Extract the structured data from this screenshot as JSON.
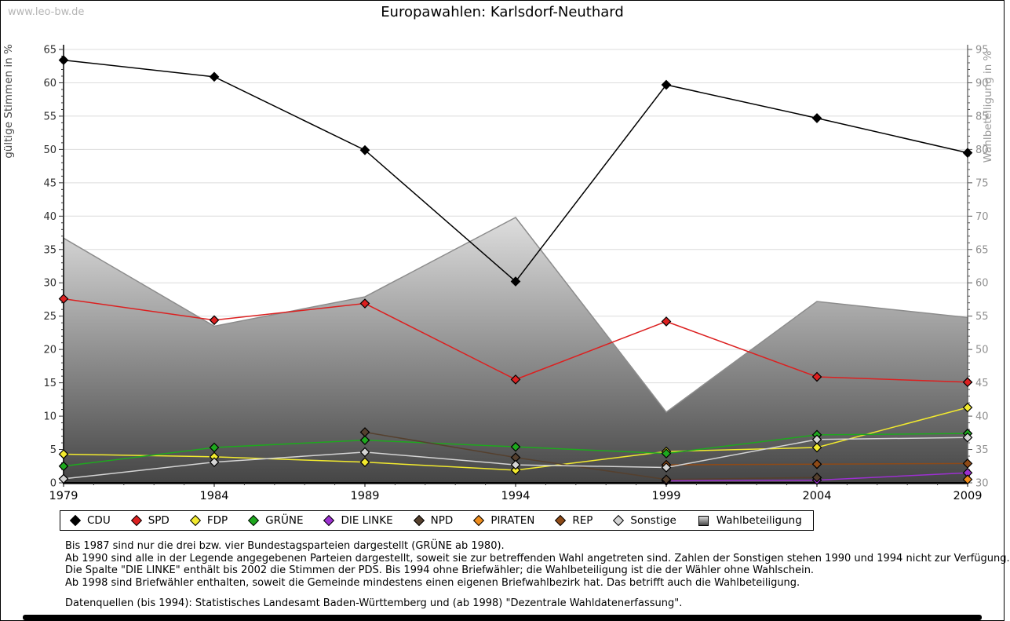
{
  "page": {
    "watermark": "www.leo-bw.de",
    "title": "Europawahlen: Karlsdorf-Neuthard"
  },
  "notes": [
    "Bis 1987 sind nur die drei bzw. vier Bundestagsparteien dargestellt (GRÜNE ab 1980).",
    "Ab 1990 sind alle in der Legende angegebenen Parteien dargestellt, soweit sie zur betreffenden Wahl angetreten sind. Zahlen der Sonstigen stehen 1990 und 1994 nicht zur Verfügung.",
    "Die Spalte \"DIE LINKE\" enthält bis 2002 die Stimmen der PDS. Bis 1994 ohne Briefwähler; die Wahlbeteiligung ist die der Wähler ohne Wahlschein.",
    "Ab 1998 sind Briefwähler enthalten, soweit die Gemeinde mindestens einen eigenen Briefwahlbezirk hat. Das betrifft auch die Wahlbeteiligung."
  ],
  "source_line": "Datenquellen (bis 1994): Statistisches Landesamt Baden-Württemberg und (ab 1998) \"Dezentrale Wahldatenerfassung\".",
  "chart_data": {
    "type": "line",
    "title": "Europawahlen: Karlsdorf-Neuthard",
    "x": [
      1979,
      1984,
      1989,
      1994,
      1999,
      2004,
      2009
    ],
    "grid": true,
    "legend_position": "bottom",
    "left_axis": {
      "label": "gültige Stimmen in %",
      "min": 0,
      "max": 65,
      "step": 5
    },
    "right_axis": {
      "label": "Wahlbeteiligung in %",
      "min": 30,
      "max": 95,
      "step": 5
    },
    "series": [
      {
        "name": "CDU",
        "color": "#000000",
        "axis": "left",
        "values": [
          63.4,
          60.9,
          49.9,
          30.2,
          59.7,
          54.7,
          49.5
        ]
      },
      {
        "name": "SPD",
        "color": "#dc2020",
        "axis": "left",
        "values": [
          27.6,
          24.4,
          26.9,
          15.5,
          24.2,
          15.9,
          15.1
        ]
      },
      {
        "name": "FDP",
        "color": "#f2ea2e",
        "axis": "left",
        "values": [
          4.3,
          3.9,
          3.1,
          1.9,
          4.7,
          5.3,
          11.3
        ]
      },
      {
        "name": "GRÜNE",
        "color": "#1ea81e",
        "axis": "left",
        "values": [
          2.5,
          5.3,
          6.4,
          5.4,
          4.4,
          7.2,
          7.4
        ]
      },
      {
        "name": "DIE LINKE",
        "color": "#9c30d0",
        "axis": "left",
        "values": [
          null,
          null,
          null,
          null,
          0.3,
          0.4,
          1.5
        ]
      },
      {
        "name": "NPD",
        "color": "#55402e",
        "axis": "left",
        "values": [
          null,
          null,
          7.6,
          3.8,
          0.5,
          0.8,
          null
        ]
      },
      {
        "name": "PIRATEN",
        "color": "#ee8c1c",
        "axis": "left",
        "values": [
          null,
          null,
          null,
          null,
          null,
          null,
          0.5
        ]
      },
      {
        "name": "REP",
        "color": "#8e4a17",
        "axis": "left",
        "values": [
          null,
          null,
          null,
          null,
          2.7,
          2.8,
          2.9
        ]
      },
      {
        "name": "Sonstige",
        "color": "#d4d4d4",
        "axis": "left",
        "values": [
          0.6,
          3.1,
          4.6,
          2.7,
          2.3,
          6.5,
          6.8
        ]
      },
      {
        "name": "Wahlbeteiligung",
        "type": "area",
        "color_top": "#dedede",
        "color_bottom": "#454545",
        "stroke": "#8c8c8c",
        "axis": "right",
        "values": [
          66.7,
          53.5,
          57.9,
          69.8,
          40.6,
          57.2,
          54.8
        ]
      }
    ]
  }
}
